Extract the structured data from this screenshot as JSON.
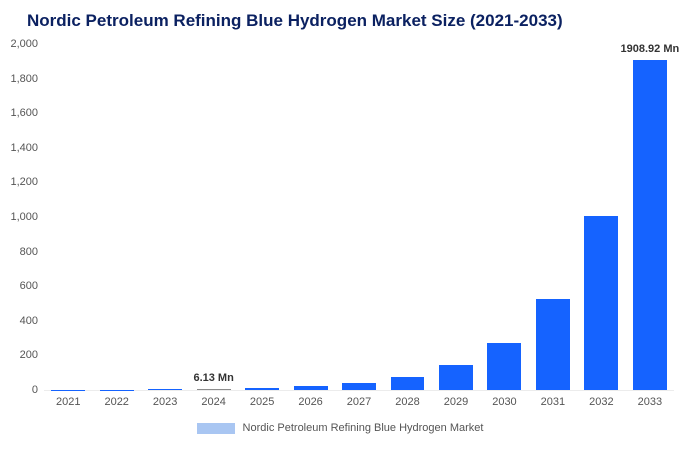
{
  "title": "Nordic Petroleum Refining Blue Hydrogen Market Size (2021-2033)",
  "legend": {
    "label": "Nordic Petroleum Refining Blue Hydrogen Market"
  },
  "colors": {
    "title": "#0b2161",
    "bar": "#1563ff",
    "legend_swatch": "#a9c6f2",
    "axis_text": "#555555",
    "annotation_text": "#333333",
    "bar_overrides": {
      "2024": "#8c8c8c"
    }
  },
  "chart_data": {
    "type": "bar",
    "title": "Nordic Petroleum Refining Blue Hydrogen Market Size (2021-2033)",
    "unit": "Mn",
    "categories": [
      "2021",
      "2022",
      "2023",
      "2024",
      "2025",
      "2026",
      "2027",
      "2028",
      "2029",
      "2030",
      "2031",
      "2032",
      "2033"
    ],
    "values": [
      0.9,
      1.8,
      3.2,
      6.13,
      12,
      22,
      40,
      75,
      142,
      272,
      528,
      1003,
      1908.92
    ],
    "annotations": [
      {
        "category": "2024",
        "label": "6.13 Mn"
      },
      {
        "category": "2033",
        "label": "1908.92 Mn"
      }
    ],
    "xlabel": "",
    "ylabel": "",
    "ylim": [
      0,
      2000
    ],
    "ytick_step": 200,
    "ytick_labels": [
      "0",
      "200",
      "400",
      "600",
      "800",
      "1,000",
      "1,200",
      "1,400",
      "1,600",
      "1,800",
      "2,000"
    ],
    "grid": false,
    "legend_position": "bottom"
  }
}
